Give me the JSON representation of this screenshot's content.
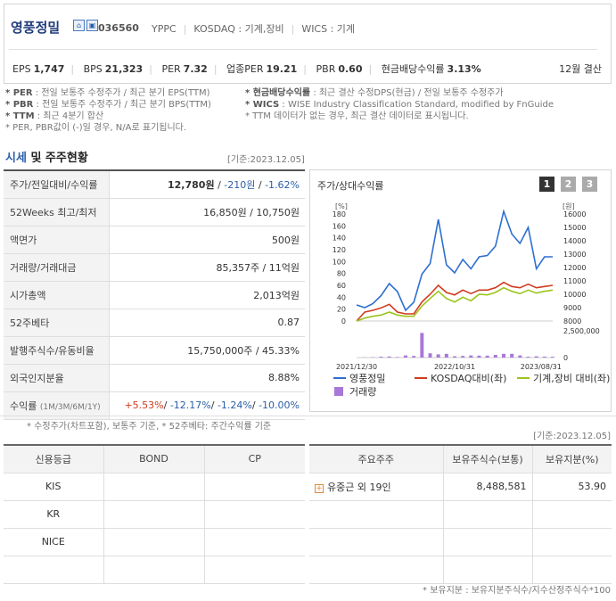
{
  "header": {
    "company": "영풍정밀",
    "code": "036560",
    "ticker": "YPPC",
    "market": "KOSDAQ : 기계,장비",
    "wics": "WICS : 기계",
    "eps_label": "EPS",
    "eps": "1,747",
    "bps_label": "BPS",
    "bps": "21,323",
    "per_label": "PER",
    "per": "7.32",
    "ind_per_label": "업종PER",
    "ind_per": "19.21",
    "pbr_label": "PBR",
    "pbr": "0.60",
    "div_label": "현금배당수익률",
    "div": "3.13%",
    "settle": "12월 결산"
  },
  "notes": {
    "l1k": "* PER",
    "l1": ": 전일 보통주 수정주가 / 최근 분기 EPS(TTM)",
    "l2k": "* PBR",
    "l2": ": 전일 보통주 수정주가 / 최근 분기 BPS(TTM)",
    "l3k": "* TTM",
    "l3": ": 최근 4분기 합산",
    "l4": "* PER, PBR값이 (-)일 경우, N/A로 표기됩니다.",
    "r1k": "* 현금배당수익률",
    "r1": ": 최근 결산 수정DPS(현금) / 전일 보통주 수정주가",
    "r2k": "* WICS",
    "r2": ": WISE Industry Classification Standard, modified by FnGuide",
    "r3": "* TTM 데이터가 없는 경우, 최근 결산 데이터로 표시됩니다."
  },
  "section": {
    "title_blue": "시세",
    "title_rest": " 및 주주현황",
    "date": "[기준:2023.12.05]"
  },
  "price_table": [
    {
      "k": "주가/전일대비/수익률",
      "v1": "12,780원",
      "v2": "-210원",
      "v3": "-1.62%"
    },
    {
      "k": "52Weeks 최고/최저",
      "v": "16,850원 / 10,750원"
    },
    {
      "k": "액면가",
      "v": "500원"
    },
    {
      "k": "거래량/거래대금",
      "v": "85,357주 / 11억원"
    },
    {
      "k": "시가총액",
      "v": "2,013억원"
    },
    {
      "k": "52주베타",
      "v": "0.87"
    },
    {
      "k": "발행주식수/유동비율",
      "v": "15,750,000주 / 45.33%"
    },
    {
      "k": "외국인지분율",
      "v": "8.88%"
    },
    {
      "k": "수익률",
      "ksub": "(1M/3M/6M/1Y)",
      "r1": "+5.53%",
      "r2": "-12.17%",
      "r3": "-1.24%",
      "r4": "-10.00%"
    }
  ],
  "price_note": "* 수정주가(차트포함), 보통주 기준, * 52주베타: 주간수익률 기준",
  "chart": {
    "title": "주가/상대수익률",
    "pages": [
      "1",
      "2",
      "3"
    ],
    "left_unit": "[%]",
    "right_unit": "[원]",
    "left_ticks": [
      "180",
      "160",
      "140",
      "120",
      "100",
      "80",
      "60",
      "40",
      "20",
      "0"
    ],
    "right_ticks": [
      "16000",
      "15000",
      "14000",
      "13000",
      "12000",
      "11000",
      "10000",
      "9000",
      "8000"
    ],
    "vol_tick_top": "2,500,000",
    "vol_tick_zero": "0",
    "x_labels": [
      "2021/12/30",
      "2022/10/31",
      "2023/08/31"
    ],
    "legend": {
      "s1": "영풍정밀",
      "s2": "KOSDAQ대비(좌)",
      "s3": "기계,장비 대비(좌)",
      "s4": "거래량"
    },
    "colors": {
      "s1": "#2e6fd0",
      "s2": "#d03a1e",
      "s3": "#9cc41c",
      "s4": "#a878d8"
    }
  },
  "chart_data": {
    "type": "line",
    "x": [
      0,
      1,
      2,
      3,
      4,
      5,
      6,
      7,
      8,
      9,
      10,
      11,
      12,
      13,
      14,
      15,
      16,
      17,
      18,
      19,
      20,
      21,
      22,
      23,
      24
    ],
    "series": [
      {
        "name": "영풍정밀",
        "axis": "right",
        "values": [
          9200,
          9000,
          9300,
          9900,
          10800,
          10200,
          8800,
          9400,
          11500,
          12300,
          15600,
          12200,
          11600,
          12600,
          11900,
          12800,
          12900,
          13600,
          16200,
          14500,
          13800,
          15000,
          11900,
          12800,
          12800
        ]
      },
      {
        "name": "KOSDAQ대비(좌)",
        "values": [
          0,
          15,
          18,
          22,
          28,
          15,
          12,
          12,
          32,
          45,
          60,
          48,
          44,
          52,
          46,
          52,
          52,
          56,
          65,
          58,
          56,
          62,
          56,
          58,
          60
        ]
      },
      {
        "name": "기계,장비 대비(좌)",
        "values": [
          0,
          5,
          8,
          10,
          15,
          10,
          8,
          8,
          25,
          38,
          50,
          38,
          32,
          40,
          34,
          45,
          44,
          48,
          56,
          50,
          46,
          52,
          47,
          50,
          52
        ]
      },
      {
        "name": "거래량",
        "axis": "volume",
        "values": [
          0,
          20000,
          30000,
          80000,
          100000,
          50000,
          200000,
          150000,
          2300000,
          400000,
          300000,
          350000,
          120000,
          150000,
          200000,
          180000,
          180000,
          250000,
          350000,
          350000,
          200000,
          80000,
          120000,
          90000,
          80000
        ]
      }
    ],
    "ylim_left": [
      0,
      180
    ],
    "ylim_right": [
      8000,
      16000
    ],
    "ylim_volume": [
      0,
      2500000
    ]
  },
  "credit": {
    "headers": [
      "신용등급",
      "BOND",
      "CP"
    ],
    "rows": [
      "KIS",
      "KR",
      "NICE",
      ""
    ]
  },
  "holders": {
    "date": "[기준:2023.12.05]",
    "headers": [
      "주요주주",
      "보유주식수(보통)",
      "보유지분(%)"
    ],
    "rows": [
      {
        "name": "유중근 외 19인",
        "shares": "8,488,581",
        "pct": "53.90"
      }
    ],
    "note": "* 보유지분 : 보유지분주식수/지수산정주식수*100"
  }
}
